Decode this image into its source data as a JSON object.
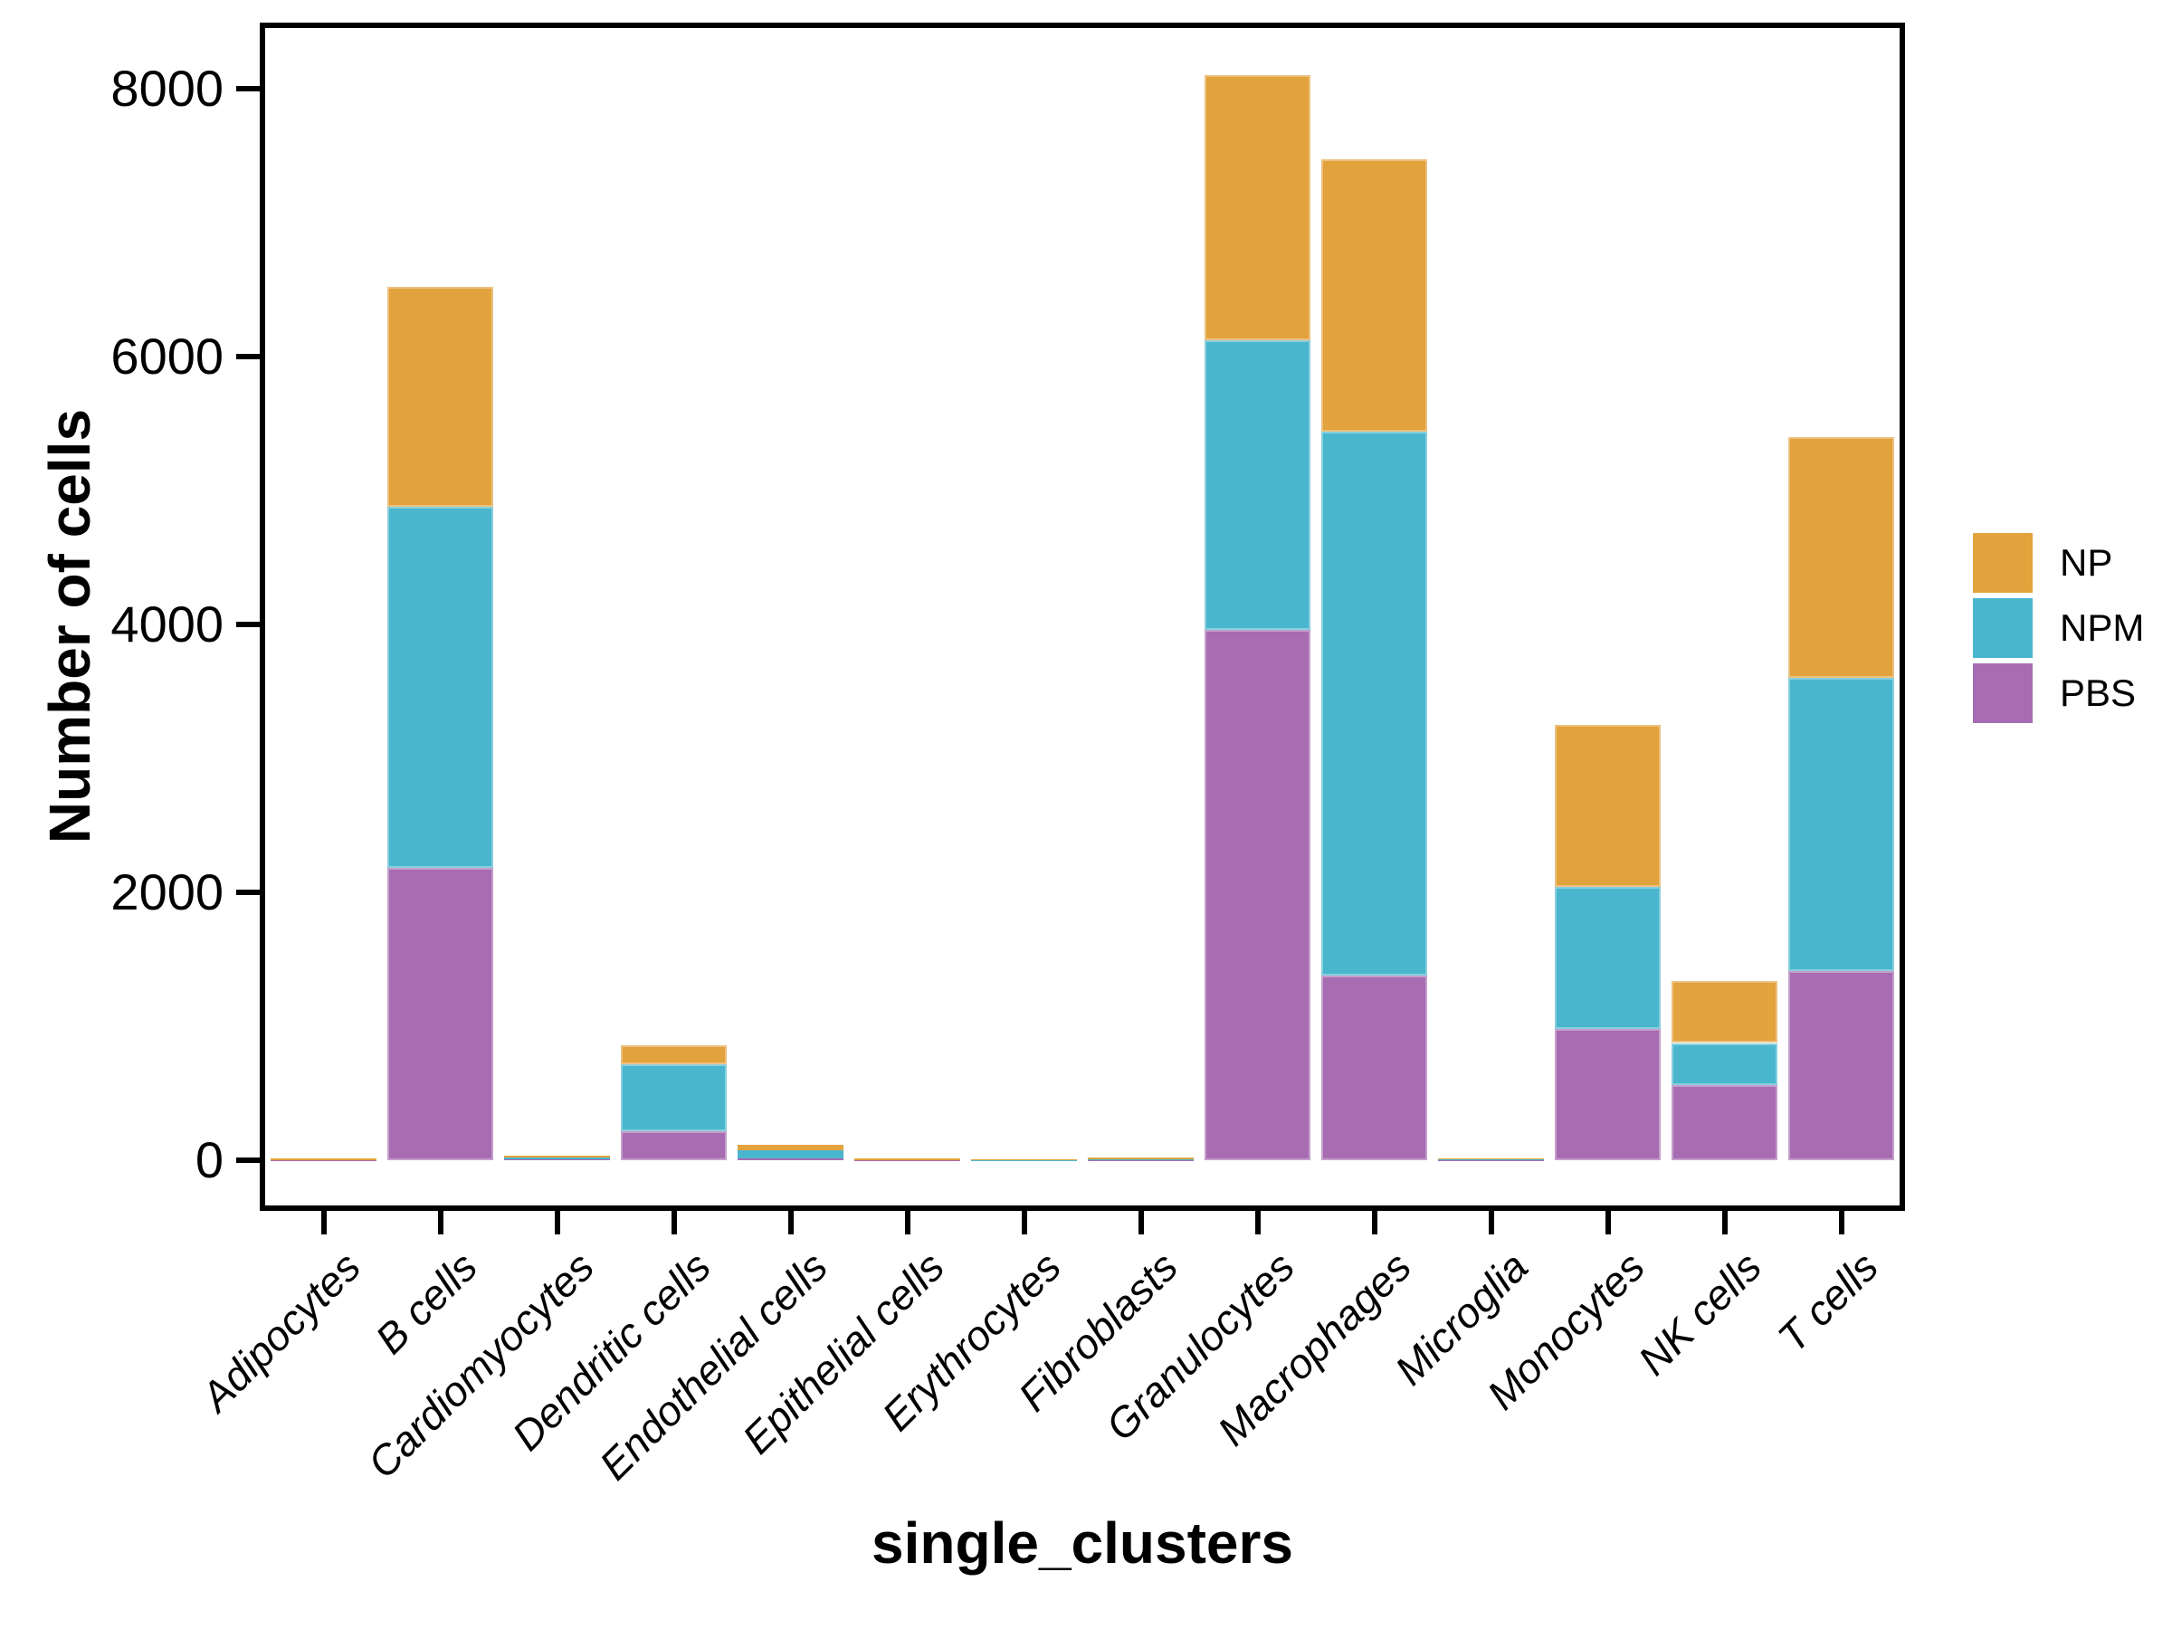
{
  "axes": {
    "x_title": "single_clusters",
    "y_title": "Number of cells",
    "axis_color": "#000000",
    "background_color": "#ffffff"
  },
  "legend": {
    "items": [
      {
        "label": "NP",
        "color": "#E2A23C"
      },
      {
        "label": "NPM",
        "color": "#4AB6CE"
      },
      {
        "label": "PBS",
        "color": "#A76CB1"
      }
    ]
  },
  "chart_data": {
    "type": "bar",
    "stacked": true,
    "title": "",
    "xlabel": "single_clusters",
    "ylabel": "Number of cells",
    "ylim": [
      0,
      8500
    ],
    "y_ticks": [
      0,
      2000,
      4000,
      6000,
      8000
    ],
    "grid": false,
    "legend_position": "right",
    "legend_order": [
      "NP",
      "NPM",
      "PBS"
    ],
    "stack_order_bottom_to_top": [
      "PBS",
      "NPM",
      "NP"
    ],
    "categories": [
      "Adipocytes",
      "B cells",
      "Cardiomyocytes",
      "Dendritic cells",
      "Endothelial cells",
      "Epithelial cells",
      "Erythrocytes",
      "Fibroblasts",
      "Granulocytes",
      "Macrophages",
      "Microglia",
      "Monocytes",
      "NK cells",
      "T cells"
    ],
    "series": [
      {
        "name": "NP",
        "color": "#E2A23C",
        "values": [
          3,
          1640,
          12,
          145,
          40,
          2,
          2,
          14,
          1980,
          2030,
          8,
          1210,
          465,
          1800
        ]
      },
      {
        "name": "NPM",
        "color": "#4AB6CE",
        "values": [
          6,
          2700,
          10,
          500,
          65,
          8,
          2,
          4,
          2160,
          4060,
          2,
          1060,
          315,
          2190
        ]
      },
      {
        "name": "PBS",
        "color": "#A76CB1",
        "values": [
          3,
          2180,
          10,
          215,
          12,
          3,
          3,
          3,
          3960,
          1380,
          5,
          980,
          560,
          1410
        ]
      }
    ],
    "totals": [
      12,
      6520,
      32,
      860,
      117,
      13,
      7,
      21,
      8100,
      7470,
      15,
      3250,
      1340,
      5400
    ]
  }
}
